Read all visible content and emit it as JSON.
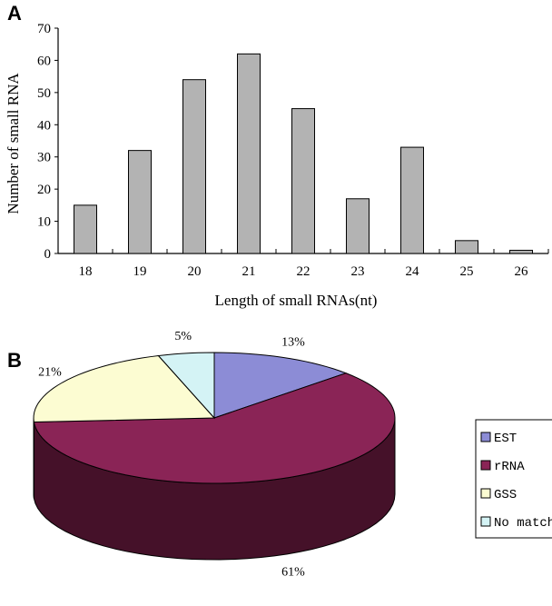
{
  "panels": {
    "a_label": "A",
    "b_label": "B"
  },
  "chart_data": [
    {
      "type": "bar",
      "categories": [
        "18",
        "19",
        "20",
        "21",
        "22",
        "23",
        "24",
        "25",
        "26"
      ],
      "values": [
        15,
        32,
        54,
        62,
        45,
        17,
        33,
        4,
        1
      ],
      "xlabel": "Length of small RNAs(nt)",
      "ylabel": "Number of small RNA",
      "ylim": [
        0,
        70
      ],
      "yticks": [
        "0",
        "10",
        "20",
        "30",
        "40",
        "50",
        "60",
        "70"
      ],
      "bar_color": "#b3b3b3",
      "grid": false
    },
    {
      "type": "pie",
      "style": "3d",
      "labels": [
        "EST",
        "rRNA",
        "GSS",
        "No match"
      ],
      "values": [
        13,
        61,
        21,
        5
      ],
      "value_labels": [
        "13%",
        "61%",
        "21%",
        "5%"
      ],
      "colors": [
        "#8c8cd6",
        "#8a2456",
        "#fcfcd2",
        "#d4f3f5"
      ],
      "side_colors": [
        "#4a4a7a",
        "#451129",
        "#8a8a6a",
        "#6a8a8c"
      ],
      "legend_position": "right"
    }
  ]
}
